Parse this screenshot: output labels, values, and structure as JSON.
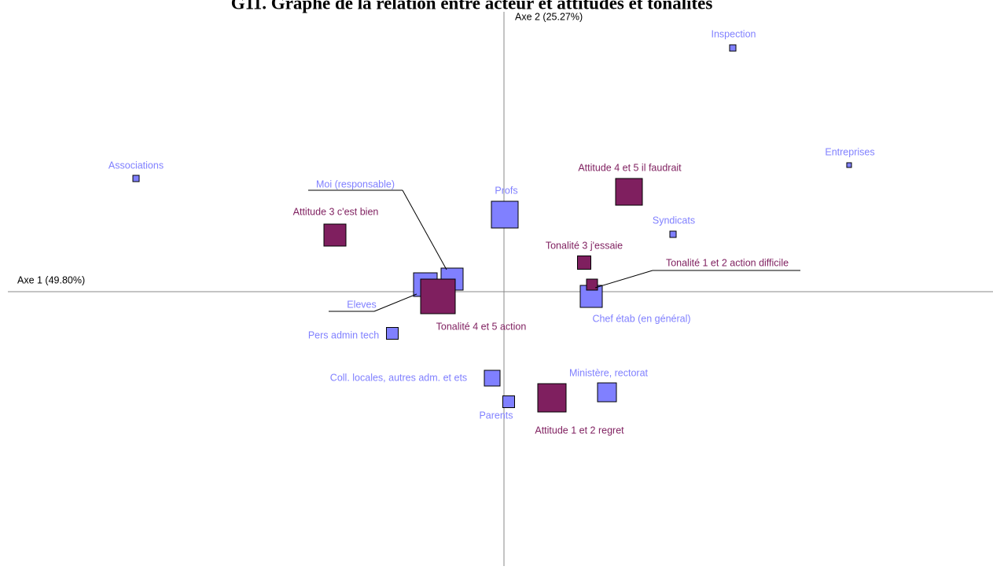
{
  "chart_data": {
    "type": "scatter",
    "title": "G11. Graphe de la relation entre acteur et attitudes et tonalites",
    "xlabel": "Axe 1 (49.80%)",
    "ylabel": "Axe 2 (25.27%)",
    "xlim": [
      -6.31,
      6.22
    ],
    "ylim": [
      -3.49,
      3.46
    ],
    "series": [
      {
        "color": "#8080ff",
        "labels": [
          "Inspection",
          "Entreprises",
          "Associations",
          "Profs",
          "Syndicats",
          "Moi (responsable)",
          "Eleves",
          "Chef étab (en général)",
          "Pers admin tech",
          "Coll. locales, autres adm. et ets",
          "Ministère, rectorat",
          "Parents"
        ],
        "x": [
          2.91,
          4.39,
          -4.68,
          0.01,
          2.15,
          -0.66,
          -1.0,
          1.11,
          -1.42,
          -0.15,
          1.31,
          0.06
        ],
        "values": [
          3.1,
          1.61,
          1.44,
          0.98,
          0.73,
          0.16,
          0.09,
          -0.06,
          -0.53,
          -1.1,
          -1.28,
          -1.4
        ],
        "sizes": [
          8,
          6,
          8,
          34,
          8,
          28,
          30,
          28,
          15,
          20,
          24,
          15
        ]
      },
      {
        "color": "#7f1f5f",
        "labels": [
          "Attitude 4 et 5 il faudrait",
          "Attitude 3 c'est bien",
          "Tonalité 3 j'essaie",
          "Tonalité 1 et 2 action difficile",
          "Tonalité 4 et 5 action",
          "Attitude 1 et 2 regret"
        ],
        "x": [
          1.59,
          -2.15,
          1.02,
          1.12,
          -0.84,
          0.61
        ],
        "values": [
          1.27,
          0.72,
          0.37,
          0.09,
          -0.06,
          -1.35
        ],
        "sizes": [
          34,
          28,
          17,
          14,
          44,
          36
        ]
      }
    ]
  }
}
